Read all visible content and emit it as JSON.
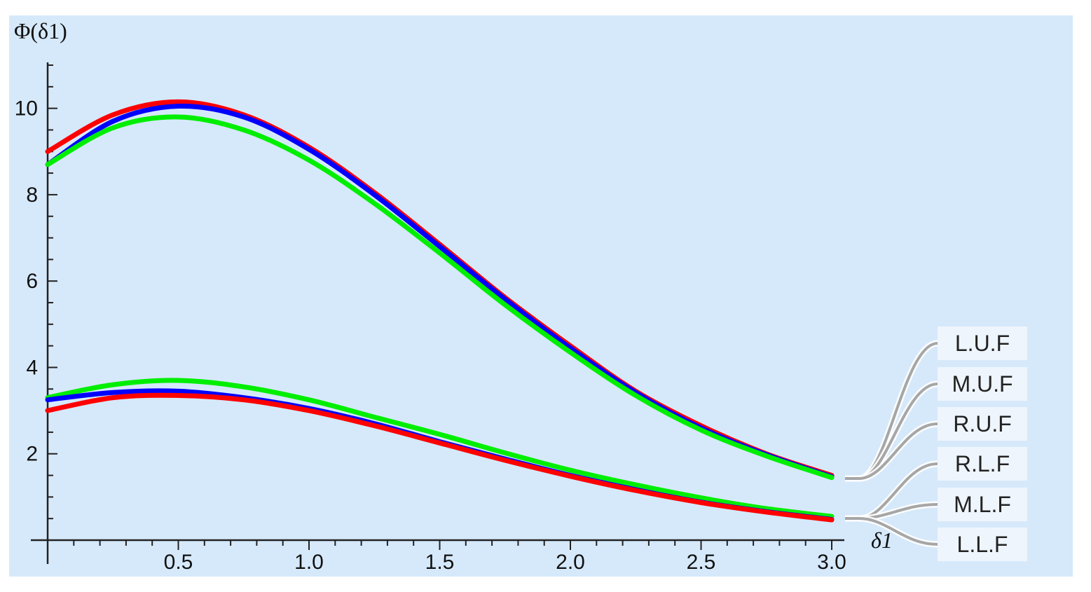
{
  "chart_data": {
    "type": "line",
    "title": "",
    "xlabel": "δ1",
    "ylabel": "Φ(δ1)",
    "xlim": [
      0,
      3.0
    ],
    "ylim": [
      0,
      11
    ],
    "x_ticks": [
      "0.5",
      "1.0",
      "1.5",
      "2.0",
      "2.5",
      "3.0"
    ],
    "y_ticks": [
      "2",
      "4",
      "6",
      "8",
      "10"
    ],
    "grid": false,
    "background": "#d6e9fb",
    "x": [
      0,
      0.25,
      0.5,
      0.75,
      1.0,
      1.25,
      1.5,
      1.75,
      2.0,
      2.25,
      2.5,
      2.75,
      3.0
    ],
    "series": [
      {
        "name": "L.U.F",
        "color": "#ff0000",
        "values": [
          9.0,
          9.85,
          10.15,
          9.85,
          9.1,
          8.05,
          6.85,
          5.62,
          4.5,
          3.45,
          2.65,
          2.0,
          1.5
        ]
      },
      {
        "name": "M.U.F",
        "color": "#0000ff",
        "values": [
          8.7,
          9.7,
          10.05,
          9.8,
          9.05,
          8.0,
          6.8,
          5.58,
          4.45,
          3.42,
          2.6,
          1.98,
          1.47
        ]
      },
      {
        "name": "R.U.F",
        "color": "#00ee00",
        "values": [
          8.7,
          9.55,
          9.8,
          9.5,
          8.8,
          7.8,
          6.65,
          5.45,
          4.35,
          3.35,
          2.55,
          1.95,
          1.45
        ]
      },
      {
        "name": "R.L.F",
        "color": "#00ee00",
        "values": [
          3.3,
          3.6,
          3.7,
          3.55,
          3.25,
          2.85,
          2.45,
          2.02,
          1.62,
          1.28,
          0.98,
          0.73,
          0.55
        ]
      },
      {
        "name": "M.L.F",
        "color": "#0000ff",
        "values": [
          3.25,
          3.42,
          3.45,
          3.3,
          3.05,
          2.7,
          2.28,
          1.88,
          1.5,
          1.17,
          0.88,
          0.66,
          0.48
        ]
      },
      {
        "name": "L.L.F",
        "color": "#ff0000",
        "values": [
          3.0,
          3.3,
          3.35,
          3.25,
          3.0,
          2.65,
          2.25,
          1.85,
          1.48,
          1.15,
          0.87,
          0.65,
          0.47
        ]
      }
    ],
    "legend": {
      "placement": "right",
      "items": [
        "L.U.F",
        "M.U.F",
        "R.U.F",
        "R.L.F",
        "M.L.F",
        "L.L.F"
      ]
    }
  }
}
